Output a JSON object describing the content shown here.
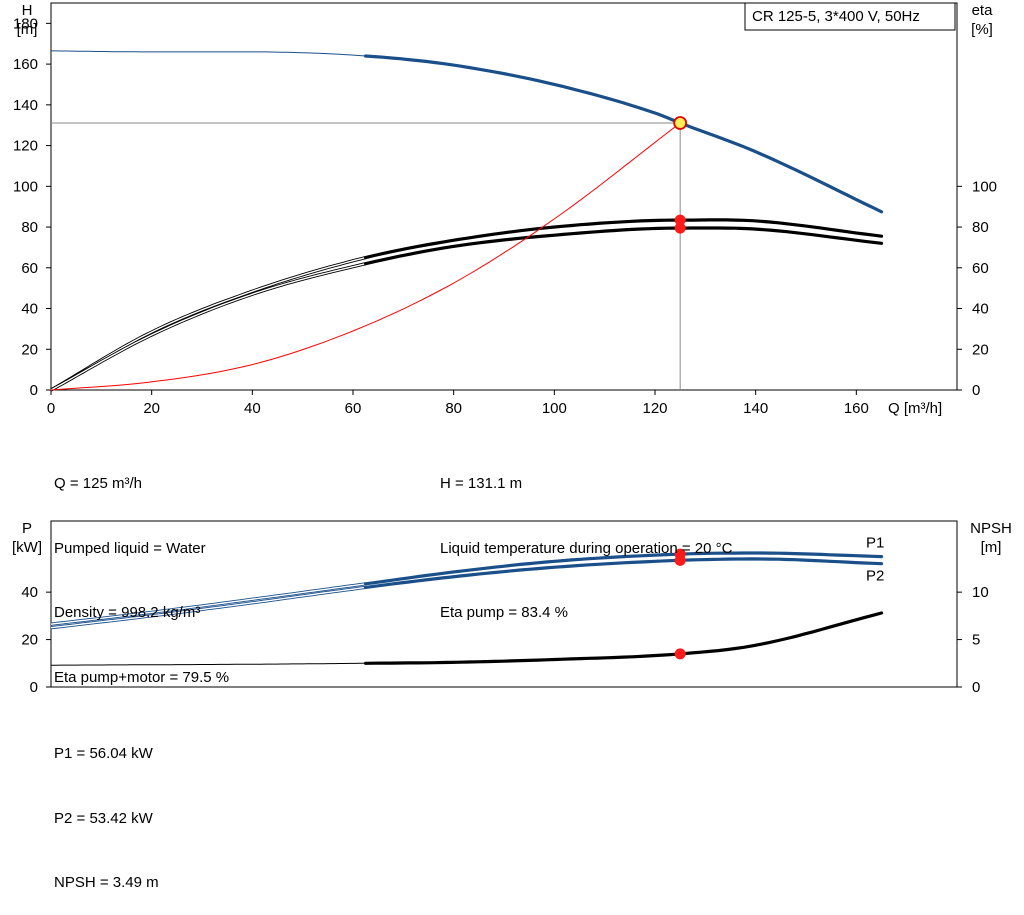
{
  "legend_box": "CR 125-5, 3*400 V, 50Hz",
  "chart_data": [
    {
      "type": "line",
      "title": "",
      "xlabel": "Q [m³/h]",
      "ylabel": "H\n[m]",
      "y2label": "eta\n[%]",
      "xlim": [
        0,
        180
      ],
      "ylim": [
        0,
        190
      ],
      "y2lim": [
        0,
        190
      ],
      "x_ticks": [
        0,
        20,
        40,
        60,
        80,
        100,
        120,
        140,
        160
      ],
      "y_ticks": [
        0,
        20,
        40,
        60,
        80,
        100,
        120,
        140,
        160,
        180
      ],
      "y2_ticks": [
        0,
        20,
        40,
        60,
        80,
        100
      ],
      "grid": false,
      "series": [
        {
          "role": "head",
          "color": "#1a4f8a",
          "axis": "left",
          "x": [
            0,
            20,
            40,
            62.5,
            80,
            100,
            120,
            125,
            140,
            165
          ],
          "y": [
            166.5,
            166.0,
            166.0,
            164.0,
            159.5,
            150.0,
            136.0,
            131.1,
            117.0,
            87.5
          ]
        },
        {
          "role": "eta-pump",
          "color": "#000000",
          "axis": "right",
          "x": [
            0,
            20,
            40,
            62.5,
            80,
            100,
            125,
            140,
            165
          ],
          "y": [
            0,
            28.5,
            48.5,
            65.0,
            73.5,
            80.0,
            83.4,
            83.0,
            75.5
          ]
        },
        {
          "role": "eta-pump-motor",
          "color": "#000000",
          "axis": "right",
          "x": [
            0,
            20,
            40,
            62.5,
            80,
            100,
            125,
            140,
            165
          ],
          "y": [
            0,
            27.0,
            47.0,
            62.0,
            70.5,
            76.0,
            79.5,
            79.0,
            72.0
          ]
        },
        {
          "role": "system-curve",
          "color": "#ff0000",
          "axis": "left",
          "x": [
            0,
            20,
            40,
            60,
            80,
            100,
            125
          ],
          "y": [
            0,
            4.0,
            12.5,
            29.0,
            52.5,
            84.0,
            131.1
          ]
        }
      ],
      "duty_point": {
        "x": 125,
        "y": 131.1,
        "eta_pump": 83.4,
        "eta_pump_motor": 79.5
      }
    },
    {
      "type": "line",
      "title": "",
      "xlabel": "",
      "ylabel": "P\n[kW]",
      "y2label": "NPSH\n[m]",
      "xlim": [
        0,
        180
      ],
      "ylim": [
        0,
        70
      ],
      "y2lim": [
        0,
        17.5
      ],
      "y_ticks": [
        0,
        20,
        40
      ],
      "y2_ticks": [
        0,
        5,
        10
      ],
      "grid": false,
      "series": [
        {
          "name": "P1",
          "color": "#1a4f8a",
          "axis": "left",
          "x": [
            0,
            20,
            40,
            62.5,
            80,
            100,
            125,
            140,
            165
          ],
          "y": [
            26.5,
            31.5,
            37.0,
            43.5,
            48.5,
            53.0,
            56.04,
            56.5,
            55.0
          ]
        },
        {
          "name": "P2",
          "color": "#1a4f8a",
          "axis": "left",
          "x": [
            0,
            20,
            40,
            62.5,
            80,
            100,
            125,
            140,
            165
          ],
          "y": [
            25.0,
            30.0,
            35.5,
            42.0,
            46.5,
            50.5,
            53.42,
            54.0,
            52.0
          ]
        },
        {
          "role": "npsh",
          "color": "#000000",
          "axis": "right",
          "x": [
            0,
            40,
            62.5,
            80,
            100,
            125,
            140,
            165
          ],
          "y": [
            2.3,
            2.4,
            2.5,
            2.6,
            2.9,
            3.49,
            4.4,
            7.8
          ]
        }
      ],
      "duty_point": {
        "x": 125,
        "p1": 56.04,
        "p2": 53.42,
        "npsh": 3.49
      }
    }
  ],
  "info_top_left": [
    "Q = 125 m³/h",
    "Pumped liquid = Water",
    "Density = 998.2 kg/m³",
    "Eta pump+motor = 79.5 %"
  ],
  "info_top_right": [
    "H = 131.1 m",
    "Liquid temperature during operation = 20 °C",
    "Eta pump = 83.4 %"
  ],
  "info_bottom": [
    "P1 = 56.04 kW",
    "P2 = 53.42 kW",
    "NPSH = 3.49 m"
  ]
}
